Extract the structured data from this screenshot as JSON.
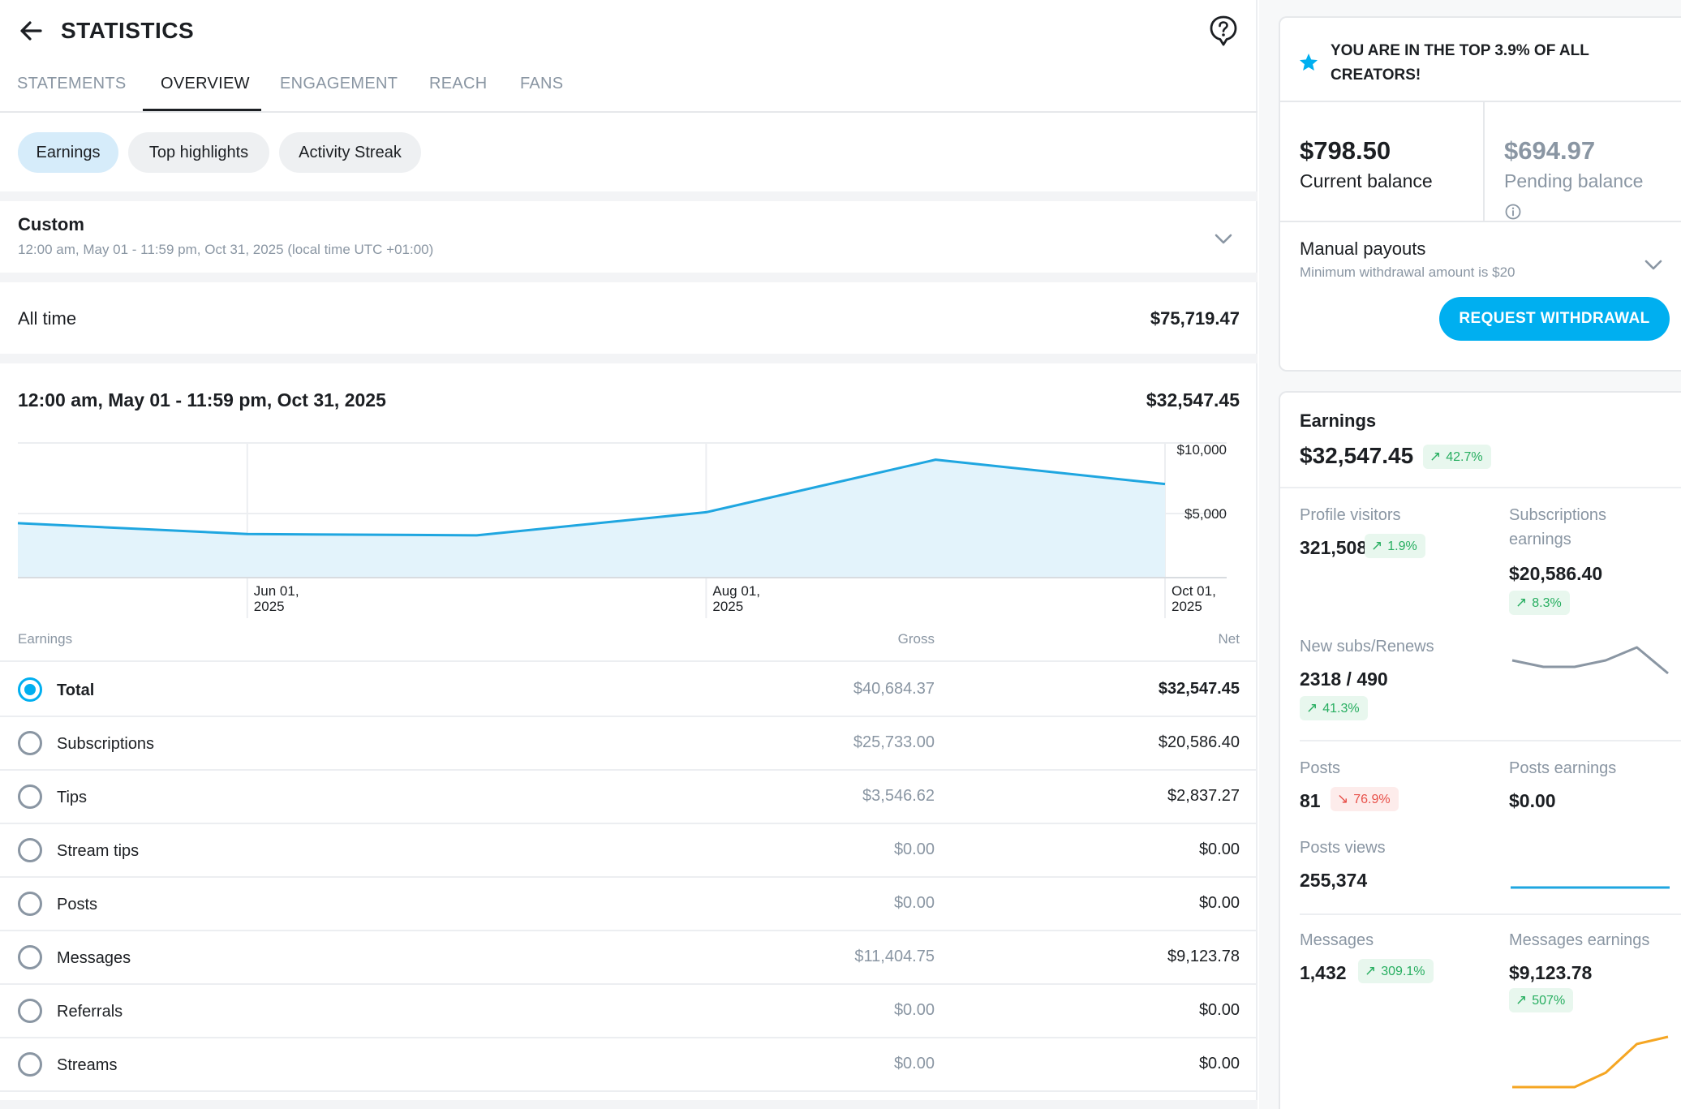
{
  "header": {
    "title": "STATISTICS"
  },
  "tabs": [
    {
      "label": "STATEMENTS"
    },
    {
      "label": "OVERVIEW"
    },
    {
      "label": "ENGAGEMENT"
    },
    {
      "label": "REACH"
    },
    {
      "label": "FANS"
    }
  ],
  "chips": [
    {
      "label": "Earnings"
    },
    {
      "label": "Top highlights"
    },
    {
      "label": "Activity Streak"
    }
  ],
  "period": {
    "title": "Custom",
    "subtitle": "12:00 am, May 01 - 11:59 pm, Oct 31, 2025 (local time UTC +01:00)"
  },
  "all_time": {
    "label": "All time",
    "value": "$75,719.47"
  },
  "range": {
    "label": "12:00 am, May 01 - 11:59 pm, Oct 31, 2025",
    "value": "$32,547.45"
  },
  "chart_data": {
    "type": "area",
    "x": [
      "2025-05-01",
      "2025-06-01",
      "2025-07-01",
      "2025-08-01",
      "2025-09-01",
      "2025-10-01"
    ],
    "series": [
      {
        "values": [
          4250,
          3400,
          3300,
          5100,
          9200,
          7300
        ]
      }
    ],
    "x_tick_labels": [
      {
        "line1": "Jun 01,",
        "line2": "2025"
      },
      {
        "line1": "Aug 01,",
        "line2": "2025"
      },
      {
        "line1": "Oct 01,",
        "line2": "2025"
      }
    ],
    "y_tick_labels": [
      "$10,000",
      "$5,000"
    ],
    "ylim": [
      0,
      10000
    ],
    "line_color": "#1fa6e0",
    "fill_color": "#e3f3fb"
  },
  "table": {
    "headers": {
      "name": "Earnings",
      "gross": "Gross",
      "net": "Net"
    },
    "rows": [
      {
        "label": "Total",
        "gross": "$40,684.37",
        "net": "$32,547.45",
        "selected": true
      },
      {
        "label": "Subscriptions",
        "gross": "$25,733.00",
        "net": "$20,586.40",
        "selected": false
      },
      {
        "label": "Tips",
        "gross": "$3,546.62",
        "net": "$2,837.27",
        "selected": false
      },
      {
        "label": "Stream tips",
        "gross": "$0.00",
        "net": "$0.00",
        "selected": false
      },
      {
        "label": "Posts",
        "gross": "$0.00",
        "net": "$0.00",
        "selected": false
      },
      {
        "label": "Messages",
        "gross": "$11,404.75",
        "net": "$9,123.78",
        "selected": false
      },
      {
        "label": "Referrals",
        "gross": "$0.00",
        "net": "$0.00",
        "selected": false
      },
      {
        "label": "Streams",
        "gross": "$0.00",
        "net": "$0.00",
        "selected": false
      }
    ]
  },
  "sidebar": {
    "banner": "YOU ARE IN THE TOP 3.9% OF ALL CREATORS!",
    "current_balance": {
      "amount": "$798.50",
      "label": "Current balance"
    },
    "pending_balance": {
      "amount": "$694.97",
      "label": "Pending balance"
    },
    "payouts": {
      "title": "Manual payouts",
      "subtitle": "Minimum withdrawal amount is $20",
      "button": "REQUEST WITHDRAWAL"
    },
    "earnings": {
      "title": "Earnings",
      "amount": "$32,547.45",
      "change": "42.7%",
      "profile_visitors": {
        "label": "Profile visitors",
        "value": "321,508",
        "change": "1.9%"
      },
      "subscriptions_earnings": {
        "label": "Subscriptions earnings",
        "value": "$20,586.40",
        "change": "8.3%"
      },
      "new_subs": {
        "label": "New subs/Renews",
        "value": "2318 / 490",
        "change": "41.3%",
        "sparkline": [
          3,
          2,
          2,
          3,
          5,
          1
        ]
      },
      "posts": {
        "label": "Posts",
        "value": "81",
        "change": "76.9%"
      },
      "posts_earnings": {
        "label": "Posts earnings",
        "value": "$0.00"
      },
      "posts_views": {
        "label": "Posts views",
        "value": "255,374"
      },
      "messages": {
        "label": "Messages",
        "value": "1,432",
        "change": "309.1%"
      },
      "messages_earnings": {
        "label": "Messages earnings",
        "value": "$9,123.78",
        "change": "507%",
        "sparkline": [
          0,
          0,
          0,
          2,
          6,
          7
        ]
      }
    },
    "colors": {
      "accent": "#00aff0",
      "up": "#27ae60",
      "down": "#e8514a",
      "spark_gray": "#8a96a3",
      "spark_orange": "#f5a623"
    }
  }
}
